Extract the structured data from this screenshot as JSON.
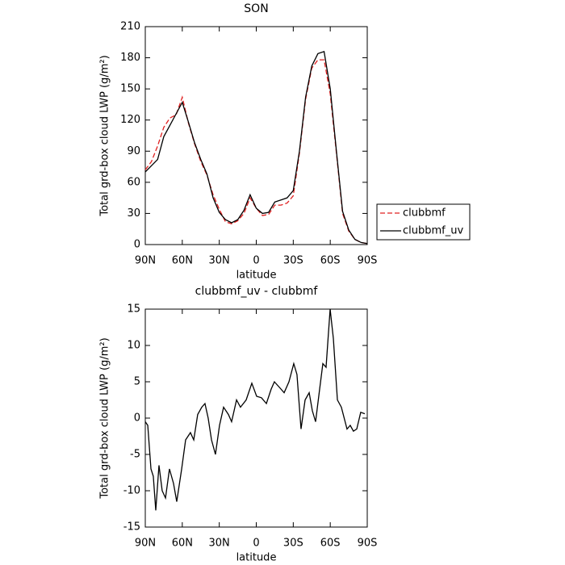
{
  "chart_data": [
    {
      "type": "line",
      "title": "SON",
      "xlabel": "latitude",
      "ylabel": "Total grd-box cloud LWP (g/m²)",
      "x": [
        90,
        85,
        80,
        75,
        70,
        65,
        60,
        55,
        50,
        45,
        40,
        35,
        30,
        25,
        20,
        15,
        10,
        5,
        0,
        -5,
        -10,
        -15,
        -20,
        -25,
        -30,
        -35,
        -40,
        -45,
        -50,
        -55,
        -60,
        -65,
        -70,
        -75,
        -80,
        -85,
        -90
      ],
      "series": [
        {
          "name": "clubbmf",
          "color": "#e02020",
          "line_style": "dashed",
          "values": [
            72,
            80,
            95,
            113,
            122,
            125,
            142,
            117,
            97,
            80,
            67,
            48,
            34,
            22,
            20,
            23,
            30,
            45,
            35,
            28,
            29,
            38,
            38,
            40,
            47,
            88,
            140,
            170,
            178,
            178,
            145,
            88,
            30,
            13,
            5,
            2,
            1
          ]
        },
        {
          "name": "clubbmf_uv",
          "color": "#000000",
          "line_style": "solid",
          "values": [
            70,
            76,
            82,
            104,
            115,
            126,
            137,
            118,
            98,
            82,
            68,
            45,
            31,
            24,
            21,
            24,
            33,
            48,
            35,
            30,
            31,
            41,
            43,
            45,
            52,
            90,
            142,
            172,
            184,
            186,
            150,
            90,
            32,
            14,
            5,
            2,
            1
          ]
        }
      ],
      "xlim": [
        90,
        -90
      ],
      "xticks": [
        {
          "value": 90,
          "label": "90N"
        },
        {
          "value": 60,
          "label": "60N"
        },
        {
          "value": 30,
          "label": "30N"
        },
        0,
        {
          "value": -30,
          "label": "30S"
        },
        {
          "value": -60,
          "label": "60S"
        },
        {
          "value": -90,
          "label": "90S"
        }
      ],
      "ylim": [
        0,
        210
      ],
      "yticks": [
        0,
        30,
        60,
        90,
        120,
        150,
        180,
        210
      ],
      "legend": "right"
    },
    {
      "type": "line",
      "title": "clubbmf_uv - clubbmf",
      "xlabel": "latitude",
      "ylabel": "Total grd-box cloud LWP (g/m²)",
      "x": [
        90,
        88,
        85.4,
        83.5,
        81.5,
        78.9,
        76.3,
        73.6,
        70.4,
        67.1,
        64.5,
        60.5,
        57.3,
        53.4,
        50.7,
        47.5,
        44.2,
        41.6,
        39,
        36.3,
        33.1,
        29.8,
        26.5,
        22.6,
        20,
        16,
        12.8,
        8.2,
        3.6,
        -0.3,
        -4.2,
        -8.2,
        -12.1,
        -14.7,
        -20,
        -22.6,
        -26.5,
        -30.4,
        -33,
        -36.3,
        -39.6,
        -42.9,
        -45.5,
        -48.1,
        -51.4,
        -54,
        -56.6,
        -59.9,
        -62.5,
        -65.8,
        -69,
        -73.6,
        -76.2,
        -78.8,
        -81.5,
        -84.7,
        -88
      ],
      "series": [
        {
          "name": "clubbmf_uv - clubbmf",
          "color": "#000000",
          "line_style": "solid",
          "values": [
            -0.5,
            -1,
            -7,
            -8,
            -12.7,
            -6.5,
            -10,
            -11,
            -7,
            -9,
            -11.5,
            -7,
            -3,
            -2,
            -3,
            0.5,
            1.5,
            2,
            0,
            -3,
            -5,
            -1,
            1.5,
            0.5,
            -0.5,
            2.5,
            1.5,
            2.5,
            4.8,
            3,
            2.8,
            2,
            4,
            5,
            4,
            3.5,
            5,
            7.5,
            6,
            -1.5,
            2.5,
            3.5,
            1,
            -0.5,
            4,
            7.5,
            7,
            15,
            11,
            2.5,
            1.5,
            -1.5,
            -1,
            -1.8,
            -1.5,
            0.8,
            0.6
          ]
        }
      ],
      "xlim": [
        90,
        -90
      ],
      "xticks": [
        {
          "value": 90,
          "label": "90N"
        },
        {
          "value": 60,
          "label": "60N"
        },
        {
          "value": 30,
          "label": "30N"
        },
        0,
        {
          "value": -30,
          "label": "30S"
        },
        {
          "value": -60,
          "label": "60S"
        },
        {
          "value": -90,
          "label": "90S"
        }
      ],
      "ylim": [
        -15,
        15
      ],
      "yticks": [
        -15,
        -10,
        -5,
        0,
        5,
        10,
        15
      ]
    }
  ]
}
